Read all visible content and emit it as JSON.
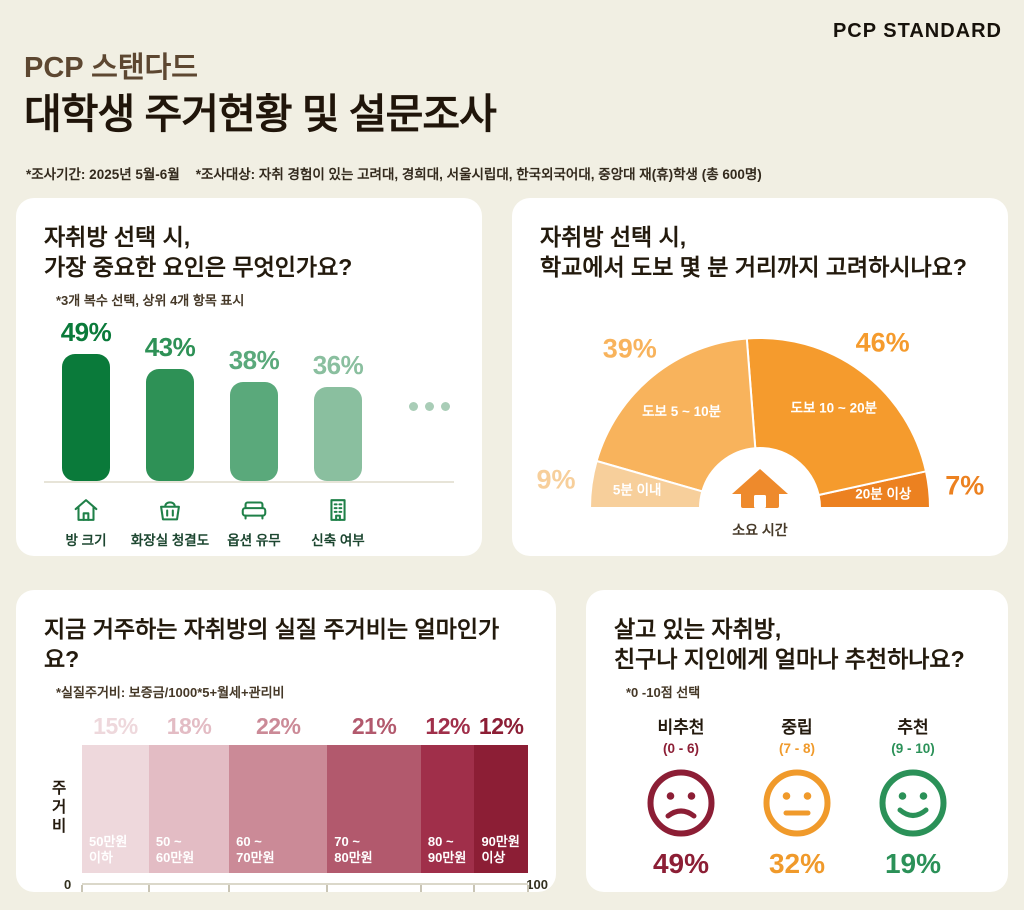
{
  "header": {
    "wordmark": "PCP STANDARD",
    "subtitle": "PCP 스탠다드",
    "title": "대학생 주거현황 및 설문조사",
    "note_period": "*조사기간: 2025년 5월-6월",
    "note_target": "*조사대상: 자취 경험이 있는 고려대, 경희대, 서울시립대, 한국외국어대, 중앙대 재(휴)학생 (총 600명)"
  },
  "chart_data": [
    {
      "type": "bar",
      "title_lines": [
        "자취방 선택 시,",
        "가장 중요한 요인은 무엇인가요?"
      ],
      "subtitle": "*3개 복수 선택, 상위 4개 항목 표시",
      "categories": [
        "방 크기",
        "화장실 청결도",
        "옵션 유무",
        "신축 여부"
      ],
      "values": [
        49,
        43,
        38,
        36
      ],
      "unit": "%",
      "bar_colors": [
        "#0a7a3a",
        "#2e9156",
        "#5aa97b",
        "#8abf9f"
      ],
      "icons": [
        "house-icon",
        "basket-icon",
        "sofa-icon",
        "building-icon"
      ],
      "more_dots": 3,
      "ylim": [
        0,
        60
      ],
      "grid": false
    },
    {
      "type": "half-donut",
      "title_lines": [
        "자취방 선택 시,",
        "학교에서 도보 몇 분 거리까지 고려하시나요?"
      ],
      "center_icon": "house-icon",
      "center_label": "소요 시간",
      "unit": "%",
      "segments": [
        {
          "label": "5분 이내",
          "value": 9,
          "color": "#f7cf9b"
        },
        {
          "label": "도보 5 ~ 10분",
          "value": 39,
          "color": "#f8b35c"
        },
        {
          "label": "도보 10 ~ 20분",
          "value": 46,
          "color": "#f59b2d"
        },
        {
          "label": "20분 이상",
          "value": 7,
          "color": "#ec8120"
        }
      ]
    },
    {
      "type": "stacked-bar",
      "title_lines": [
        "지금 거주하는 자취방의 실질 주거비는 얼마인가요?"
      ],
      "subtitle": "*실질주거비: 보증금/1000*5+월세+관리비",
      "ylabel": "주거비",
      "unit": "%",
      "axis": {
        "min": "0",
        "max": "100"
      },
      "segments": [
        {
          "label": "50만원\n이하",
          "value": 15,
          "color": "#eed8dc"
        },
        {
          "label": "50 ~\n60만원",
          "value": 18,
          "color": "#e3bcc4"
        },
        {
          "label": "60 ~\n70만원",
          "value": 22,
          "color": "#cb8a97"
        },
        {
          "label": "70 ~\n80만원",
          "value": 21,
          "color": "#b2596d"
        },
        {
          "label": "80 ~\n90만원",
          "value": 12,
          "color": "#a02f4a"
        },
        {
          "label": "90만원\n이상",
          "value": 12,
          "color": "#8c1e35"
        }
      ]
    },
    {
      "type": "emoji-scale",
      "title_lines": [
        "살고 있는 자취방,",
        "친구나 지인에게 얼마나 추천하나요?"
      ],
      "subtitle": "*0 -10점 선택",
      "unit": "%",
      "items": [
        {
          "label": "비추천",
          "range": "(0 - 6)",
          "value": 49,
          "color": "#8c1e35",
          "face": "frown"
        },
        {
          "label": "중립",
          "range": "(7 - 8)",
          "value": 32,
          "color": "#f09a2b",
          "face": "neutral"
        },
        {
          "label": "추천",
          "range": "(9 - 10)",
          "value": 19,
          "color": "#2b9158",
          "face": "smile"
        }
      ]
    }
  ]
}
